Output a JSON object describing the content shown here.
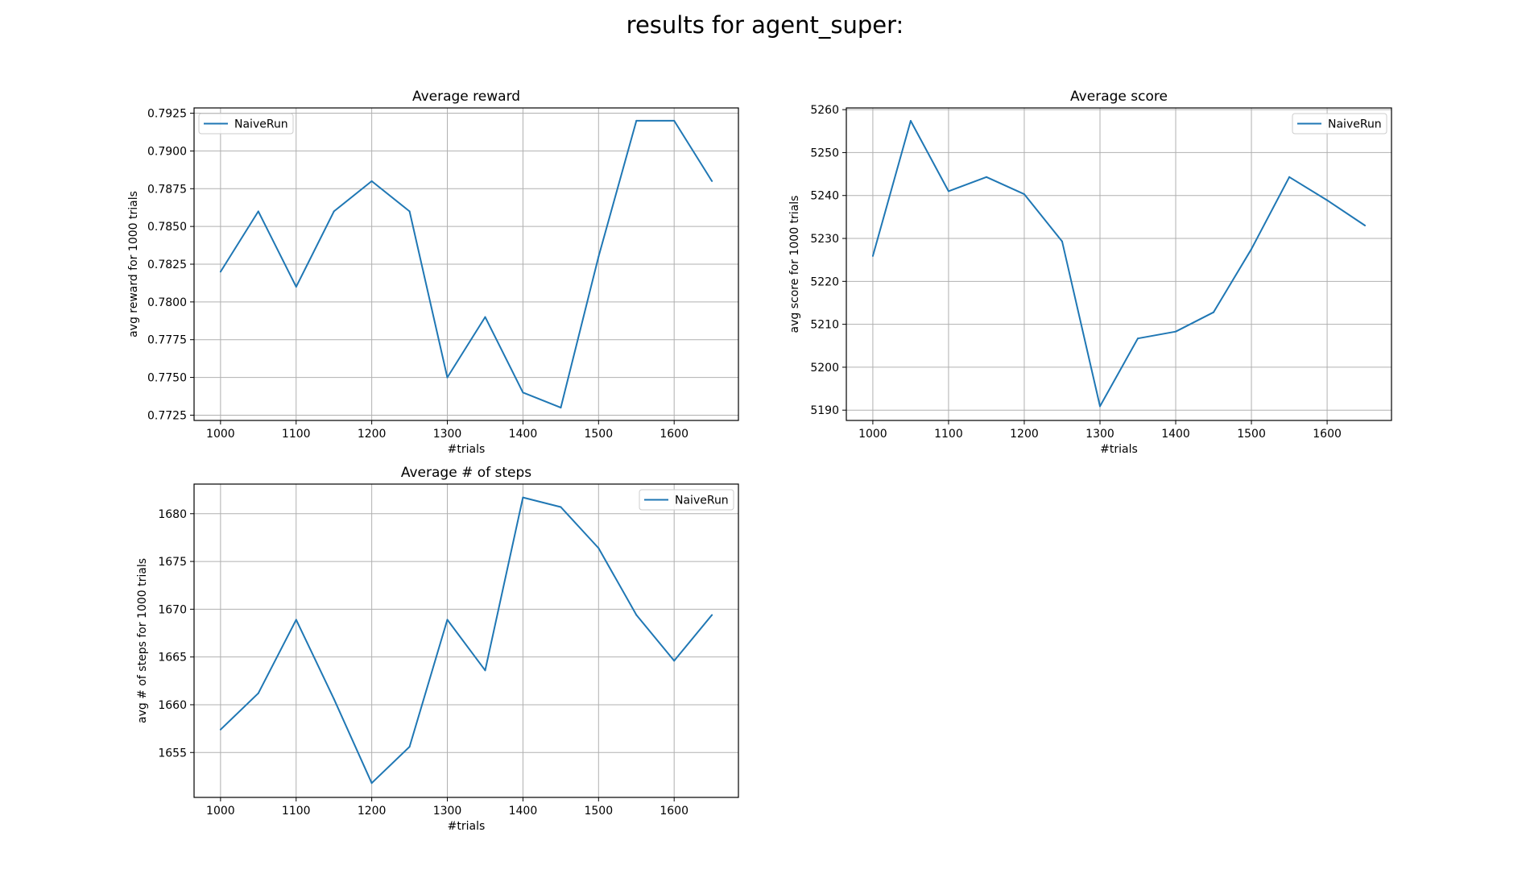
{
  "suptitle": "results for agent_super:",
  "chart_data": [
    {
      "type": "line",
      "title": "Average reward",
      "xlabel": "#trials",
      "ylabel": "avg reward for 1000 trials",
      "legend_position": "upper-left",
      "grid": true,
      "xlim": [
        965,
        1685
      ],
      "ylim": [
        0.77215,
        0.79285
      ],
      "xticks": [
        1000,
        1100,
        1200,
        1300,
        1400,
        1500,
        1600
      ],
      "yticks": [
        0.7725,
        0.775,
        0.7775,
        0.78,
        0.7825,
        0.785,
        0.7875,
        0.79,
        0.7925
      ],
      "ytick_labels": [
        "0.7725",
        "0.7750",
        "0.7775",
        "0.7800",
        "0.7825",
        "0.7850",
        "0.7875",
        "0.7900",
        "0.7925"
      ],
      "x": [
        1000,
        1050,
        1100,
        1150,
        1200,
        1250,
        1300,
        1350,
        1400,
        1450,
        1500,
        1550,
        1600,
        1650
      ],
      "series": [
        {
          "name": "NaiveRun",
          "color": "#1f77b4",
          "values": [
            0.782,
            0.786,
            0.781,
            0.786,
            0.788,
            0.786,
            0.775,
            0.779,
            0.774,
            0.773,
            0.783,
            0.792,
            0.792,
            0.788
          ]
        }
      ]
    },
    {
      "type": "line",
      "title": "Average score",
      "xlabel": "#trials",
      "ylabel": "avg score for 1000 trials",
      "legend_position": "upper-right",
      "grid": true,
      "xlim": [
        965,
        1685
      ],
      "ylim": [
        5187.6,
        5260.4
      ],
      "xticks": [
        1000,
        1100,
        1200,
        1300,
        1400,
        1500,
        1600
      ],
      "yticks": [
        5190,
        5200,
        5210,
        5220,
        5230,
        5240,
        5250,
        5260
      ],
      "ytick_labels": [
        "5190",
        "5200",
        "5210",
        "5220",
        "5230",
        "5240",
        "5250",
        "5260"
      ],
      "x": [
        1000,
        1050,
        1100,
        1150,
        1200,
        1250,
        1300,
        1350,
        1400,
        1450,
        1500,
        1550,
        1600,
        1650
      ],
      "series": [
        {
          "name": "NaiveRun",
          "color": "#1f77b4",
          "values": [
            5225.9,
            5257.4,
            5241.0,
            5244.3,
            5240.3,
            5229.3,
            5190.9,
            5206.7,
            5208.3,
            5212.8,
            5227.5,
            5244.3,
            5238.9,
            5233.0
          ]
        }
      ]
    },
    {
      "type": "line",
      "title": "Average # of steps",
      "xlabel": "#trials",
      "ylabel": "avg # of steps for 1000 trials",
      "legend_position": "upper-right",
      "grid": true,
      "xlim": [
        965,
        1685
      ],
      "ylim": [
        1650.3,
        1683.1
      ],
      "xticks": [
        1000,
        1100,
        1200,
        1300,
        1400,
        1500,
        1600
      ],
      "yticks": [
        1655,
        1660,
        1665,
        1670,
        1675,
        1680
      ],
      "ytick_labels": [
        "1655",
        "1660",
        "1665",
        "1670",
        "1675",
        "1680"
      ],
      "x": [
        1000,
        1050,
        1100,
        1150,
        1200,
        1250,
        1300,
        1350,
        1400,
        1450,
        1500,
        1550,
        1600,
        1650
      ],
      "series": [
        {
          "name": "NaiveRun",
          "color": "#1f77b4",
          "values": [
            1657.4,
            1661.2,
            1668.9,
            1660.6,
            1651.8,
            1655.6,
            1668.9,
            1663.6,
            1681.7,
            1680.7,
            1676.4,
            1669.4,
            1664.6,
            1669.4
          ]
        }
      ]
    }
  ]
}
